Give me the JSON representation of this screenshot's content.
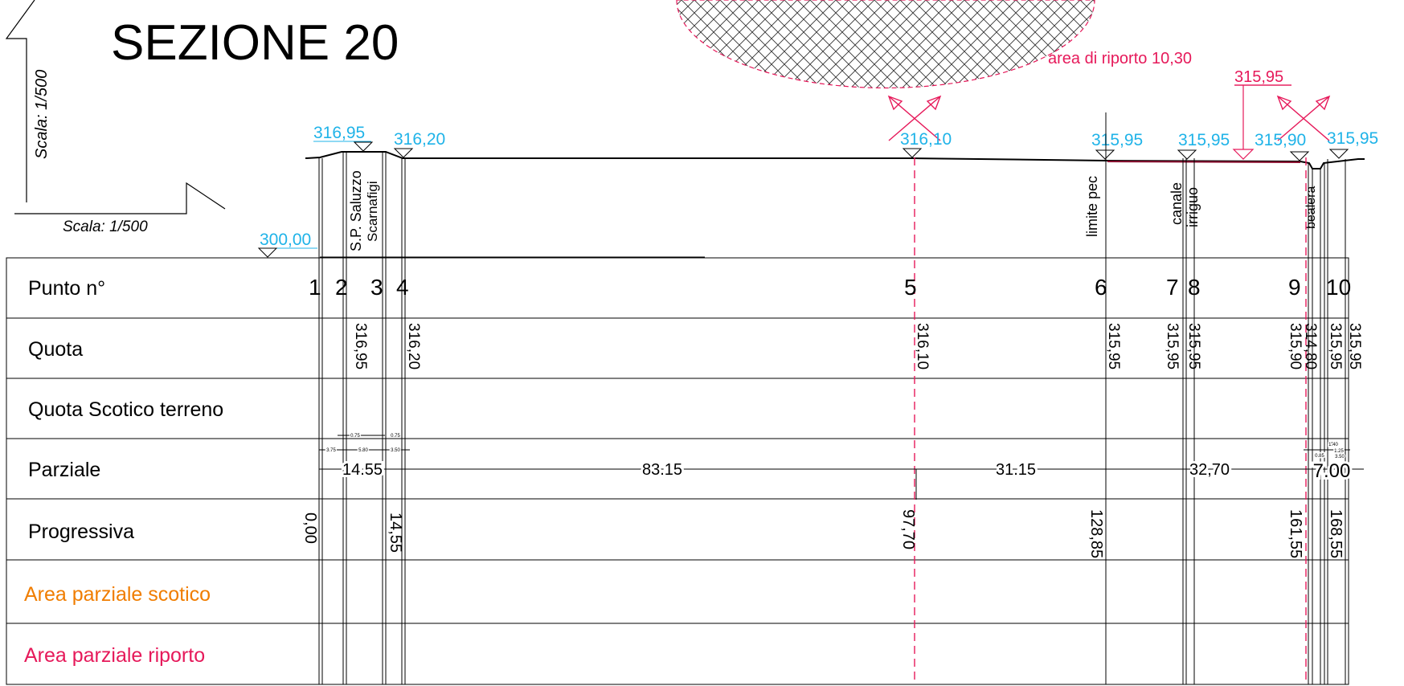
{
  "title": "SEZIONE 20",
  "scale_label_vertical": "Scala:  1/500",
  "scale_label_horizontal": "Scala:  1/500",
  "reference_elevation": "300,00",
  "fill_area_label": "area di riporto 10,30",
  "fill_marker_elevation": "315,95",
  "elevation_labels": [
    "316,95",
    "316,20",
    "316,10",
    "315,95",
    "315,95",
    "315,90",
    "315,95"
  ],
  "feature_labels": {
    "road_line1": "S.P. Saluzzo",
    "road_line2": "Scarnafigi",
    "pec_limit": "limite pec",
    "canal_line1": "canale",
    "canal_line2": "irriguo",
    "ditch": "bealera"
  },
  "row_labels": {
    "punto": "Punto n°",
    "quota": "Quota",
    "quota_scotico": "Quota Scotico terreno",
    "parziale": "Parziale",
    "progressiva": "Progressiva",
    "area_scotico": "Area parziale scotico",
    "area_riporto": "Area parziale riporto"
  },
  "points": [
    "1",
    "2",
    "3",
    "4",
    "5",
    "6",
    "7",
    "8",
    "9",
    "10"
  ],
  "quota_values": [
    "316,95",
    "316,20",
    "316,10",
    "315,95",
    "315,95",
    "315,95",
    "315,90",
    "314,80",
    "315,95",
    "315,95"
  ],
  "partial_distances": [
    "14.55",
    "83.15",
    "31.15",
    "32,70",
    "7.00"
  ],
  "small_partials": [
    "0.75",
    "0.75",
    "3.75",
    "5.80",
    "3.50",
    "1.40",
    "1.25",
    "0.85",
    "3.50"
  ],
  "progressive_values": [
    "0,00",
    "14,55",
    "97,70",
    "128,85",
    "161,55",
    "168,55"
  ],
  "colors": {
    "line": "#000000",
    "elevation": "#1fb3e8",
    "fill_red": "#e6195a",
    "orange": "#f07d00"
  }
}
